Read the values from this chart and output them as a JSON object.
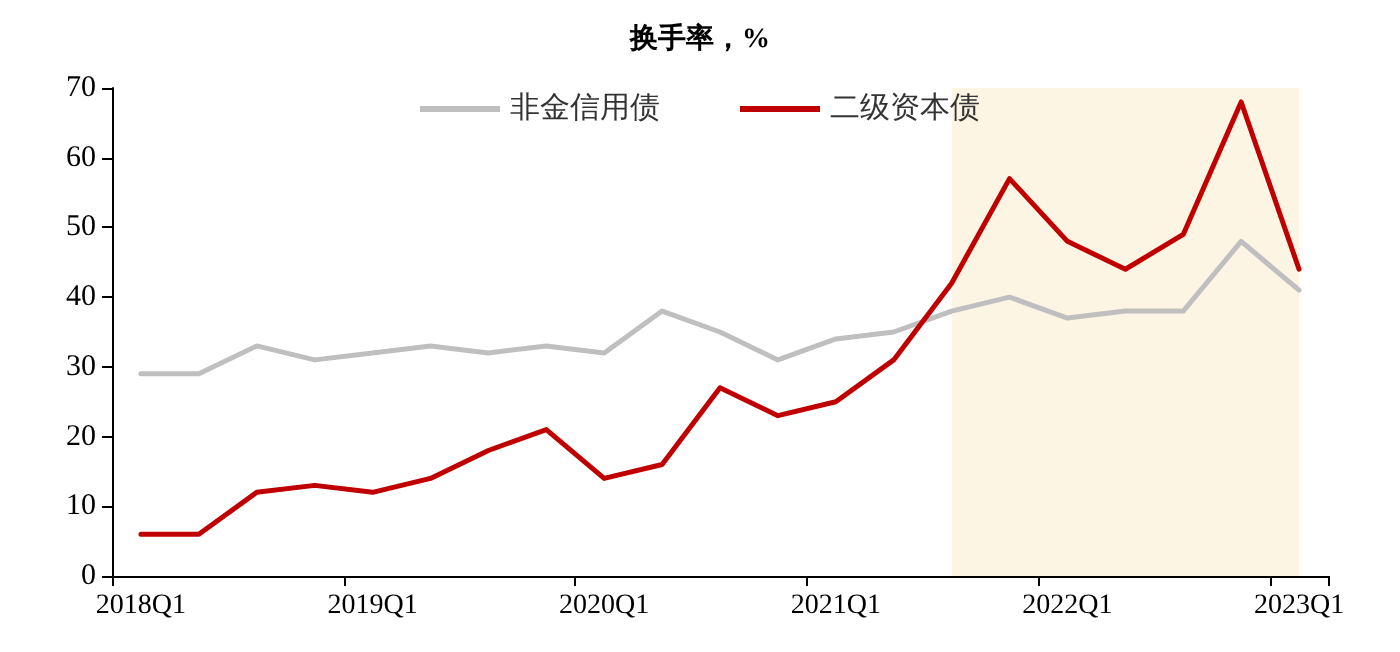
{
  "chart_data": {
    "type": "line",
    "title": "换手率，%",
    "categories": [
      "2018Q1",
      null,
      null,
      null,
      "2019Q1",
      null,
      null,
      null,
      "2020Q1",
      null,
      null,
      null,
      "2021Q1",
      null,
      null,
      null,
      "2022Q1",
      null,
      null,
      null,
      "2023Q1"
    ],
    "series": [
      {
        "name": "非金信用债",
        "color": "#bfbfbf",
        "values": [
          29,
          29,
          33,
          31,
          32,
          33,
          32,
          33,
          32,
          38,
          35,
          31,
          34,
          35,
          38,
          40,
          37,
          38,
          38,
          48,
          41
        ]
      },
      {
        "name": "二级资本债",
        "color": "#c00000",
        "values": [
          6,
          6,
          12,
          13,
          12,
          14,
          18,
          21,
          14,
          16,
          27,
          23,
          25,
          31,
          42,
          57,
          48,
          44,
          49,
          68,
          44
        ]
      }
    ],
    "ylim": [
      0,
      70
    ],
    "yticks": [
      0,
      10,
      20,
      30,
      40,
      50,
      60,
      70
    ],
    "grid": false,
    "legend": "top",
    "marker": "none",
    "line_style": "solid"
  }
}
